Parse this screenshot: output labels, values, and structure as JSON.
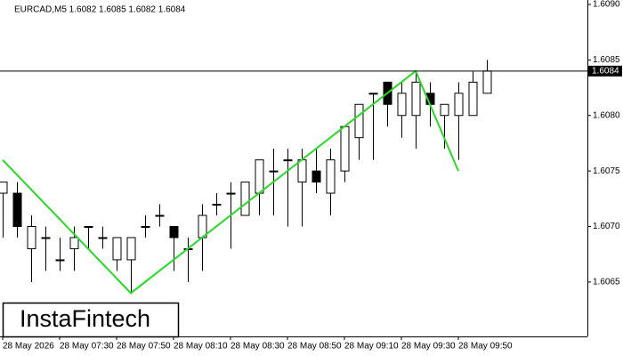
{
  "chart_data": {
    "type": "candlestick",
    "title": "EURCAD,M5  1.6082 1.6085 1.6082 1.6084",
    "categories": [
      "28 May 2026",
      null,
      null,
      null,
      "28 May 07:30",
      null,
      null,
      null,
      "28 May 07:50",
      null,
      null,
      null,
      "28 May 08:10",
      null,
      null,
      null,
      "28 May 08:30",
      null,
      null,
      null,
      "28 May 08:50",
      null,
      null,
      null,
      "28 May 09:10",
      null,
      null,
      null,
      "28 May 09:30",
      null,
      null,
      null,
      "28 May 09:50",
      null,
      null
    ],
    "open": [
      1.6073,
      1.6073,
      1.6068,
      1.6069,
      1.6067,
      1.6068,
      1.607,
      1.6069,
      1.6067,
      1.6067,
      1.607,
      1.6071,
      1.607,
      1.6068,
      1.6069,
      1.6072,
      1.6073,
      1.6071,
      1.6073,
      1.6075,
      1.6076,
      1.6074,
      1.6075,
      1.6073,
      1.6075,
      1.6078,
      1.6082,
      1.6083,
      1.608,
      1.608,
      1.6082,
      1.608,
      1.608,
      1.608,
      1.6082
    ],
    "high": [
      1.6074,
      1.6074,
      1.6071,
      1.607,
      1.6069,
      1.607,
      1.607,
      1.607,
      1.6069,
      1.6069,
      1.6071,
      1.6072,
      1.607,
      1.6069,
      1.6072,
      1.6073,
      1.6074,
      1.6074,
      1.6076,
      1.6077,
      1.6077,
      1.6077,
      1.6077,
      1.6077,
      1.6079,
      1.6081,
      1.6082,
      1.6083,
      1.6083,
      1.6084,
      1.6083,
      1.6081,
      1.6083,
      1.6084,
      1.6085
    ],
    "low": [
      1.6069,
      1.6069,
      1.6065,
      1.6066,
      1.6066,
      1.6066,
      1.6068,
      1.6068,
      1.6066,
      1.6064,
      1.6069,
      1.607,
      1.6066,
      1.6065,
      1.6066,
      1.6071,
      1.6068,
      1.6071,
      1.6071,
      1.6071,
      1.607,
      1.607,
      1.6073,
      1.6071,
      1.6074,
      1.6076,
      1.6076,
      1.6079,
      1.6078,
      1.6077,
      1.6079,
      1.6077,
      1.6076,
      1.608,
      1.6082
    ],
    "close": [
      1.6074,
      1.607,
      1.607,
      1.6069,
      1.6067,
      1.6069,
      1.607,
      1.6069,
      1.6069,
      1.6069,
      1.607,
      1.6071,
      1.6069,
      1.6068,
      1.6071,
      1.6072,
      1.6073,
      1.6074,
      1.6076,
      1.6075,
      1.6076,
      1.6076,
      1.6074,
      1.6076,
      1.6079,
      1.6081,
      1.6082,
      1.6081,
      1.6082,
      1.6083,
      1.6081,
      1.6081,
      1.6082,
      1.6083,
      1.6084
    ],
    "ylim": [
      1.60601,
      1.60904
    ],
    "yticks": [
      {
        "value": 1.609,
        "label": "1.6090"
      },
      1.6085,
      {
        "value": 1.608,
        "label": "1.6080"
      },
      1.6075,
      {
        "value": 1.607,
        "label": "1.6070"
      },
      1.6065
    ],
    "current_price": {
      "value": 1.6084,
      "label": "1.6084"
    },
    "pattern": {
      "color": "#22dd22",
      "x": [
        0,
        9,
        29,
        32
      ],
      "values": [
        1.6076,
        1.6064,
        1.6084,
        1.6075
      ]
    },
    "logo": "InstaFintech"
  }
}
